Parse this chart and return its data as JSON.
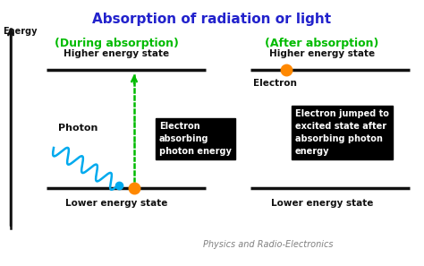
{
  "title": "Absorption of radiation or light",
  "title_color": "#2222CC",
  "bg_color": "#ffffff",
  "left_label": "(During absorption)",
  "right_label": "(After absorption)",
  "left_sublabel_high": "Higher energy state",
  "left_sublabel_low": "Lower energy state",
  "right_sublabel_high": "Higher energy state",
  "right_sublabel_low": "Lower energy state",
  "energy_label": "Energy",
  "photon_label": "Photon",
  "electron_label": "Electron",
  "box1_text": "Electron\nabsorbing\nphoton energy",
  "box2_text": "Electron jumped to\nexcited state after\nabsorbing photon\nenergy",
  "footer": "Physics and Radio-Electronics",
  "green_color": "#00BB00",
  "orange_color": "#FF8800",
  "blue_color": "#00AAEE",
  "line_color": "#111111",
  "axis_color": "#111111",
  "white": "#ffffff"
}
